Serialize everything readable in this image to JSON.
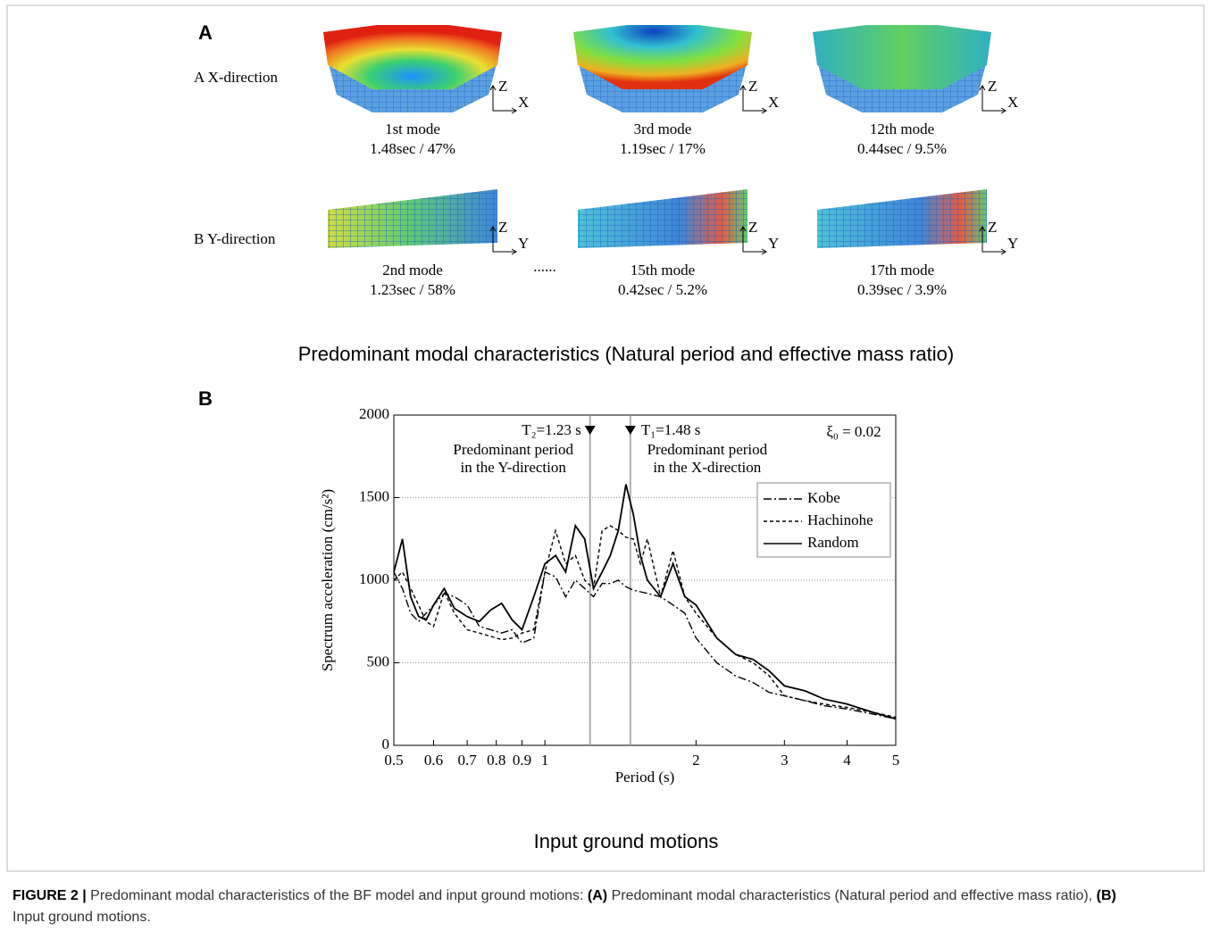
{
  "figure": {
    "panel_a": {
      "label": "A",
      "rows": [
        {
          "label": "A  X-direction",
          "axes": [
            "Z",
            "X"
          ],
          "modes": [
            {
              "name": "1st mode",
              "info": "1.48sec / 47%"
            },
            {
              "name": "3rd mode",
              "info": "1.19sec / 17%"
            },
            {
              "name": "12th mode",
              "info": "0.44sec / 9.5%"
            }
          ]
        },
        {
          "label": "B  Y-direction",
          "axes": [
            "Z",
            "Y"
          ],
          "ellipsis": "......",
          "modes": [
            {
              "name": "2nd mode",
              "info": "1.23sec / 58%"
            },
            {
              "name": "15th mode",
              "info": "0.42sec / 5.2%"
            },
            {
              "name": "17th mode",
              "info": "0.39sec / 3.9%"
            }
          ]
        }
      ],
      "caption": "Predominant modal characteristics (Natural period and effective mass ratio)"
    },
    "panel_b": {
      "label": "B",
      "caption": "Input ground motions"
    },
    "caption": [
      {
        "text": "FIGURE 2 |",
        "bold": true
      },
      {
        "text": " Predominant modal characteristics of the BF model and input ground motions: ",
        "bold": false
      },
      {
        "text": "(A)",
        "bold": true
      },
      {
        "text": " Predominant modal characteristics (Natural period and effective mass ratio), ",
        "bold": false
      },
      {
        "text": "(B)",
        "bold": true
      },
      {
        "text": " Input ground motions.",
        "bold": false
      }
    ]
  },
  "chart_data": {
    "type": "line",
    "xlabel": "Period (s)",
    "ylabel": "Spectrum acceleration (cm/s²)",
    "xscale": "log",
    "xlim": [
      0.5,
      5
    ],
    "xticks": [
      0.5,
      0.6,
      0.7,
      0.8,
      0.9,
      1,
      2,
      3,
      4,
      5
    ],
    "ylim": [
      0,
      2000
    ],
    "yticks": [
      0,
      500,
      1000,
      1500,
      2000
    ],
    "grid": true,
    "legend": "upper right",
    "annotations": [
      {
        "x": 1.23,
        "label": "T₂=1.23 s",
        "side": "left",
        "note": [
          "Predominant period",
          "in the Y-direction"
        ]
      },
      {
        "x": 1.48,
        "label": "T₁=1.48 s",
        "side": "right",
        "note": [
          "Predominant period",
          "in the X-direction"
        ]
      }
    ],
    "damping_label": "ξ₀ = 0.02",
    "x": [
      0.5,
      0.52,
      0.54,
      0.56,
      0.58,
      0.6,
      0.63,
      0.66,
      0.7,
      0.74,
      0.78,
      0.82,
      0.86,
      0.9,
      0.95,
      1.0,
      1.05,
      1.1,
      1.15,
      1.2,
      1.25,
      1.3,
      1.35,
      1.4,
      1.45,
      1.5,
      1.55,
      1.6,
      1.7,
      1.8,
      1.9,
      2.0,
      2.2,
      2.4,
      2.6,
      2.8,
      3.0,
      3.3,
      3.6,
      4.0,
      4.5,
      5.0
    ],
    "series": [
      {
        "name": "Kobe",
        "color": "#000000",
        "dash": "dash-dot",
        "values": [
          1050,
          950,
          800,
          750,
          800,
          850,
          920,
          900,
          850,
          720,
          700,
          680,
          700,
          620,
          650,
          1050,
          1020,
          900,
          1000,
          950,
          900,
          980,
          980,
          1000,
          960,
          940,
          930,
          920,
          900,
          850,
          800,
          650,
          500,
          420,
          380,
          320,
          300,
          270,
          240,
          220,
          190,
          160
        ]
      },
      {
        "name": "Hachinohe",
        "color": "#000000",
        "dash": "dashed",
        "values": [
          1000,
          1050,
          950,
          850,
          750,
          720,
          930,
          800,
          700,
          680,
          660,
          640,
          650,
          680,
          700,
          1050,
          1300,
          1100,
          1150,
          1000,
          950,
          1300,
          1330,
          1300,
          1260,
          1250,
          1100,
          1250,
          900,
          1180,
          900,
          800,
          650,
          550,
          500,
          420,
          300,
          270,
          250,
          230,
          200,
          170
        ]
      },
      {
        "name": "Random",
        "color": "#000000",
        "dash": "solid",
        "values": [
          1050,
          1250,
          900,
          780,
          760,
          850,
          950,
          830,
          780,
          750,
          820,
          860,
          760,
          700,
          900,
          1100,
          1150,
          1050,
          1330,
          1250,
          950,
          1050,
          1150,
          1300,
          1580,
          1400,
          1150,
          1000,
          900,
          1100,
          900,
          850,
          650,
          550,
          520,
          450,
          360,
          330,
          280,
          250,
          200,
          160
        ]
      }
    ]
  }
}
